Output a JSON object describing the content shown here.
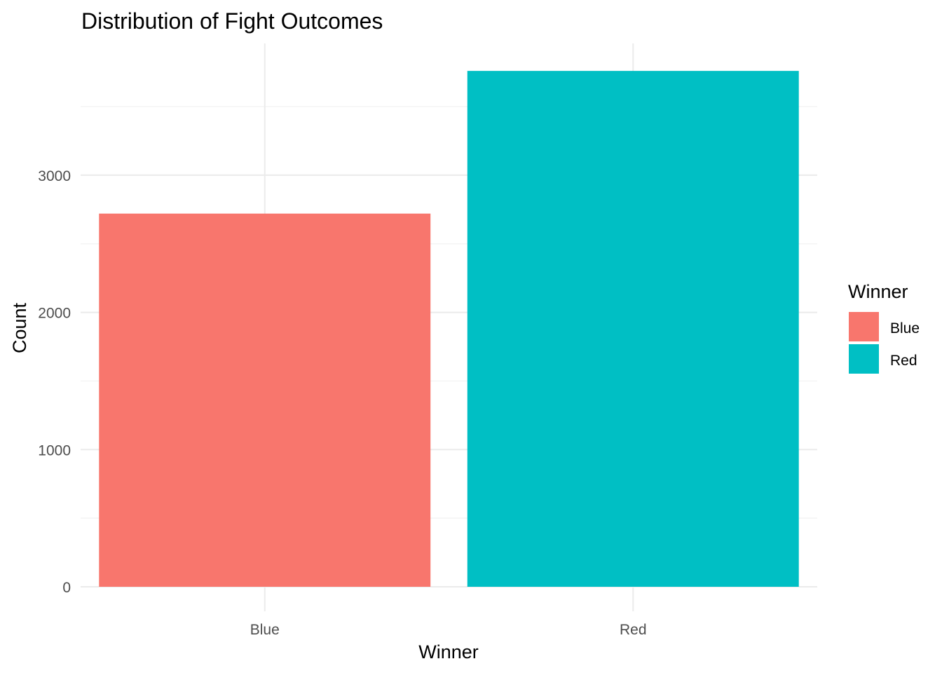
{
  "chart_data": {
    "type": "bar",
    "title": "Distribution of Fight Outcomes",
    "xlabel": "Winner",
    "ylabel": "Count",
    "categories": [
      "Blue",
      "Red"
    ],
    "values": [
      2720,
      3760
    ],
    "colors": [
      "#F8766D",
      "#00BFC4"
    ],
    "ylim": [
      0,
      3960
    ],
    "yticks": [
      0,
      1000,
      2000,
      3000
    ],
    "y_minor_ticks": [
      500,
      1500,
      2500,
      3500
    ],
    "grid": true,
    "legend": {
      "title": "Winner",
      "position": "right",
      "entries": [
        {
          "label": "Blue",
          "color": "#F8766D"
        },
        {
          "label": "Red",
          "color": "#00BFC4"
        }
      ]
    }
  }
}
